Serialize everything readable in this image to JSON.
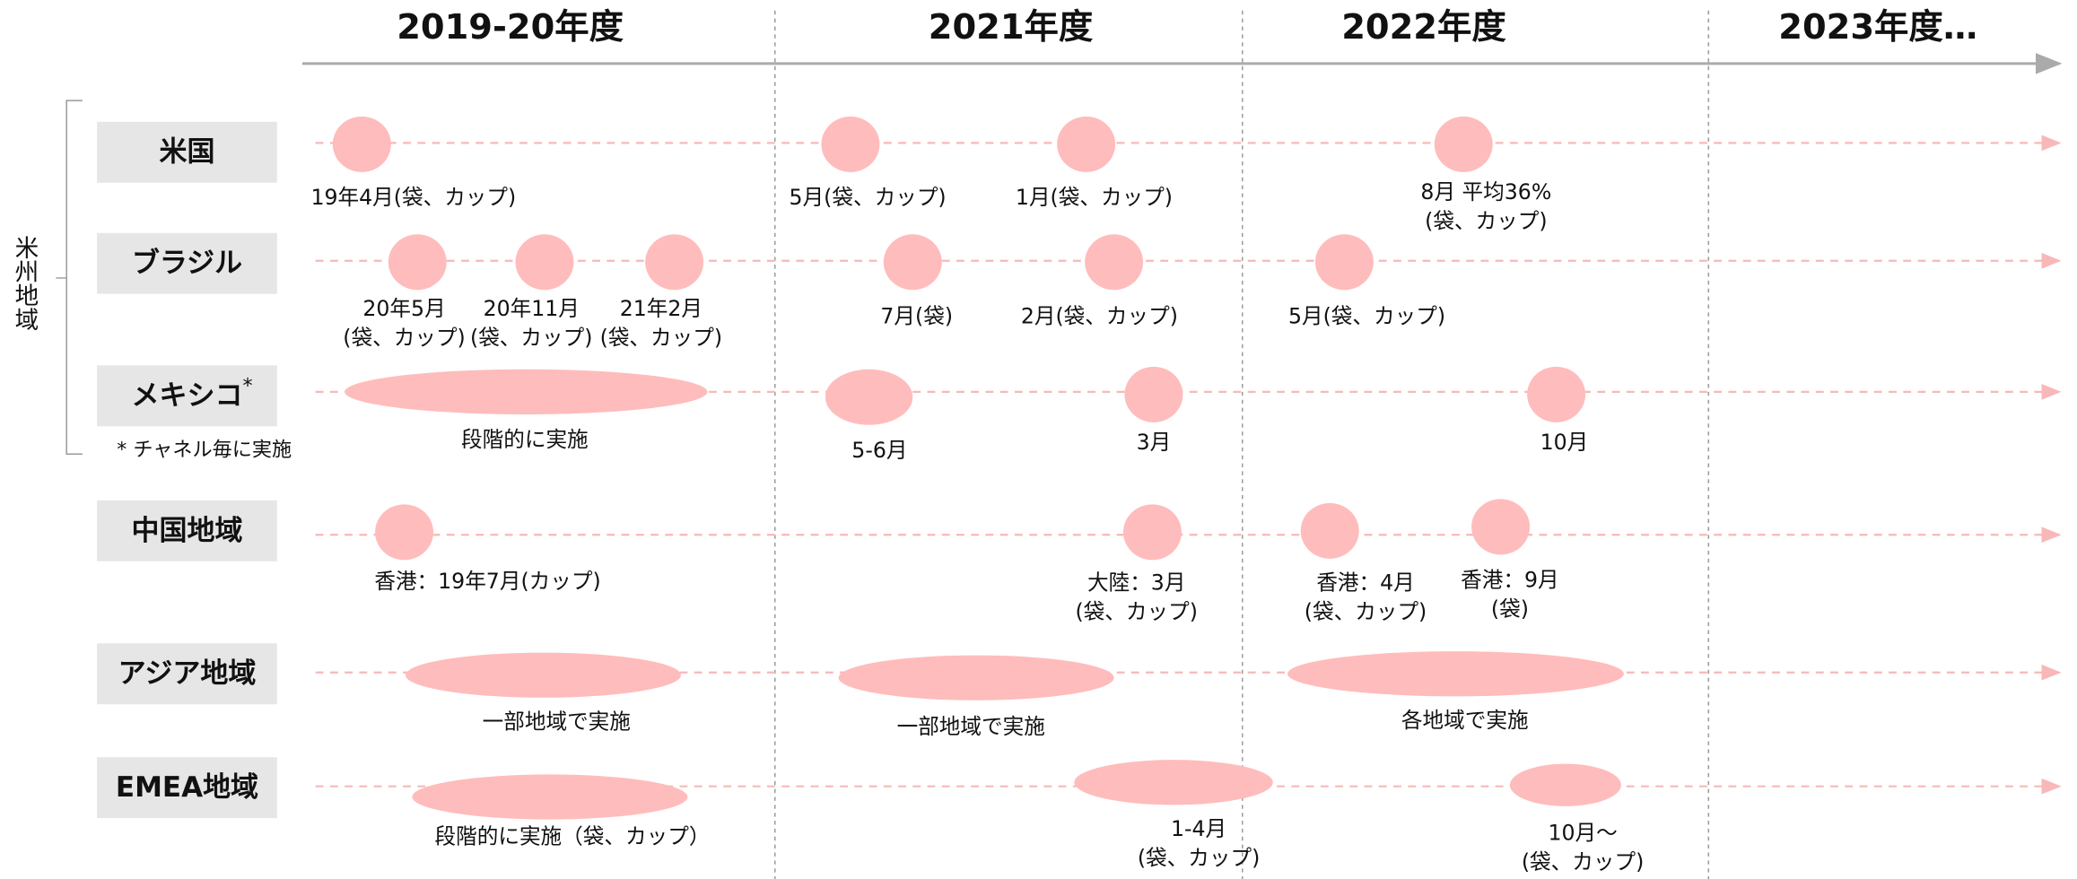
{
  "header": {
    "periods": [
      "2019-20年度",
      "2021年度",
      "2022年度",
      "2023年度…"
    ]
  },
  "group": {
    "label": "米州地域",
    "note": "* チャネル毎に実施"
  },
  "rows": [
    {
      "label": "米国",
      "events": [
        {
          "lines": [
            "19年4月(袋、カップ)"
          ]
        },
        {
          "lines": [
            "5月(袋、カップ)"
          ]
        },
        {
          "lines": [
            "1月(袋、カップ)"
          ]
        },
        {
          "lines": [
            "8月 平均36%",
            "(袋、カップ)"
          ]
        }
      ]
    },
    {
      "label": "ブラジル",
      "events": [
        {
          "lines": [
            "20年5月",
            "(袋、カップ)"
          ]
        },
        {
          "lines": [
            "20年11月",
            "(袋、カップ)"
          ]
        },
        {
          "lines": [
            "21年2月",
            "(袋、カップ)"
          ]
        },
        {
          "lines": [
            "7月(袋)"
          ]
        },
        {
          "lines": [
            "2月(袋、カップ)"
          ]
        },
        {
          "lines": [
            "5月(袋、カップ)"
          ]
        }
      ]
    },
    {
      "label": "メキシコ",
      "mark": "*",
      "events": [
        {
          "lines": [
            "段階的に実施"
          ]
        },
        {
          "lines": [
            "5-6月"
          ]
        },
        {
          "lines": [
            "3月"
          ]
        },
        {
          "lines": [
            "10月"
          ]
        }
      ]
    },
    {
      "label": "中国地域",
      "events": [
        {
          "lines": [
            "香港：19年7月(カップ)"
          ]
        },
        {
          "lines": [
            "大陸：3月",
            "(袋、カップ)"
          ]
        },
        {
          "lines": [
            "香港：4月",
            "(袋、カップ)"
          ]
        },
        {
          "lines": [
            "香港：9月",
            "(袋)"
          ]
        }
      ]
    },
    {
      "label": "アジア地域",
      "events": [
        {
          "lines": [
            "一部地域で実施"
          ]
        },
        {
          "lines": [
            "一部地域で実施"
          ]
        },
        {
          "lines": [
            "各地域で実施"
          ]
        }
      ]
    },
    {
      "label": "EMEA地域",
      "events": [
        {
          "lines": [
            "段階的に実施（袋、カップ）"
          ]
        },
        {
          "lines": [
            "1-4月",
            "(袋、カップ)"
          ]
        },
        {
          "lines": [
            "10月～",
            "(袋、カップ)"
          ]
        }
      ]
    }
  ]
}
